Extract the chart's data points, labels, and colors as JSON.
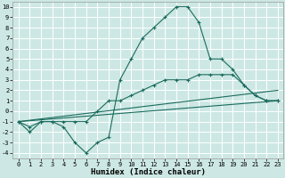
{
  "xlabel": "Humidex (Indice chaleur)",
  "xlim": [
    -0.5,
    23.5
  ],
  "ylim": [
    -4.5,
    10.5
  ],
  "xticks": [
    0,
    1,
    2,
    3,
    4,
    5,
    6,
    7,
    8,
    9,
    10,
    11,
    12,
    13,
    14,
    15,
    16,
    17,
    18,
    19,
    20,
    21,
    22,
    23
  ],
  "yticks": [
    -4,
    -3,
    -2,
    -1,
    0,
    1,
    2,
    3,
    4,
    5,
    6,
    7,
    8,
    9,
    10
  ],
  "bg_color": "#cde8e4",
  "grid_color": "#ffffff",
  "line_color": "#1a6b5e",
  "lines": [
    {
      "x": [
        0,
        1,
        2,
        3,
        4,
        5,
        6,
        7,
        8,
        9,
        10,
        11,
        12,
        13,
        14,
        15,
        16,
        17,
        18,
        19,
        20,
        21,
        22,
        23
      ],
      "y": [
        -1,
        -2,
        -1,
        -1,
        -1.5,
        -3,
        -4,
        -3,
        -2.5,
        3,
        5,
        7,
        8,
        9,
        10,
        10,
        8.5,
        5,
        5,
        4,
        2.5,
        1.5,
        1,
        1
      ],
      "marker": true
    },
    {
      "x": [
        0,
        1,
        2,
        3,
        4,
        5,
        6,
        7,
        8,
        9,
        10,
        11,
        12,
        13,
        14,
        15,
        16,
        17,
        18,
        19,
        20,
        21,
        22,
        23
      ],
      "y": [
        -1,
        -1.5,
        -1,
        -1,
        -1,
        -1,
        -1,
        0,
        1,
        1,
        1.5,
        2,
        2.5,
        3,
        3,
        3,
        3.5,
        3.5,
        3.5,
        3.5,
        2.5,
        1.5,
        1,
        1
      ],
      "marker": true
    },
    {
      "x": [
        0,
        23
      ],
      "y": [
        -1,
        1
      ],
      "marker": false
    },
    {
      "x": [
        0,
        23
      ],
      "y": [
        -1,
        2
      ],
      "marker": false
    }
  ],
  "tick_fontsize": 5,
  "xlabel_fontsize": 6.5,
  "figsize": [
    3.2,
    2.0
  ],
  "dpi": 100
}
